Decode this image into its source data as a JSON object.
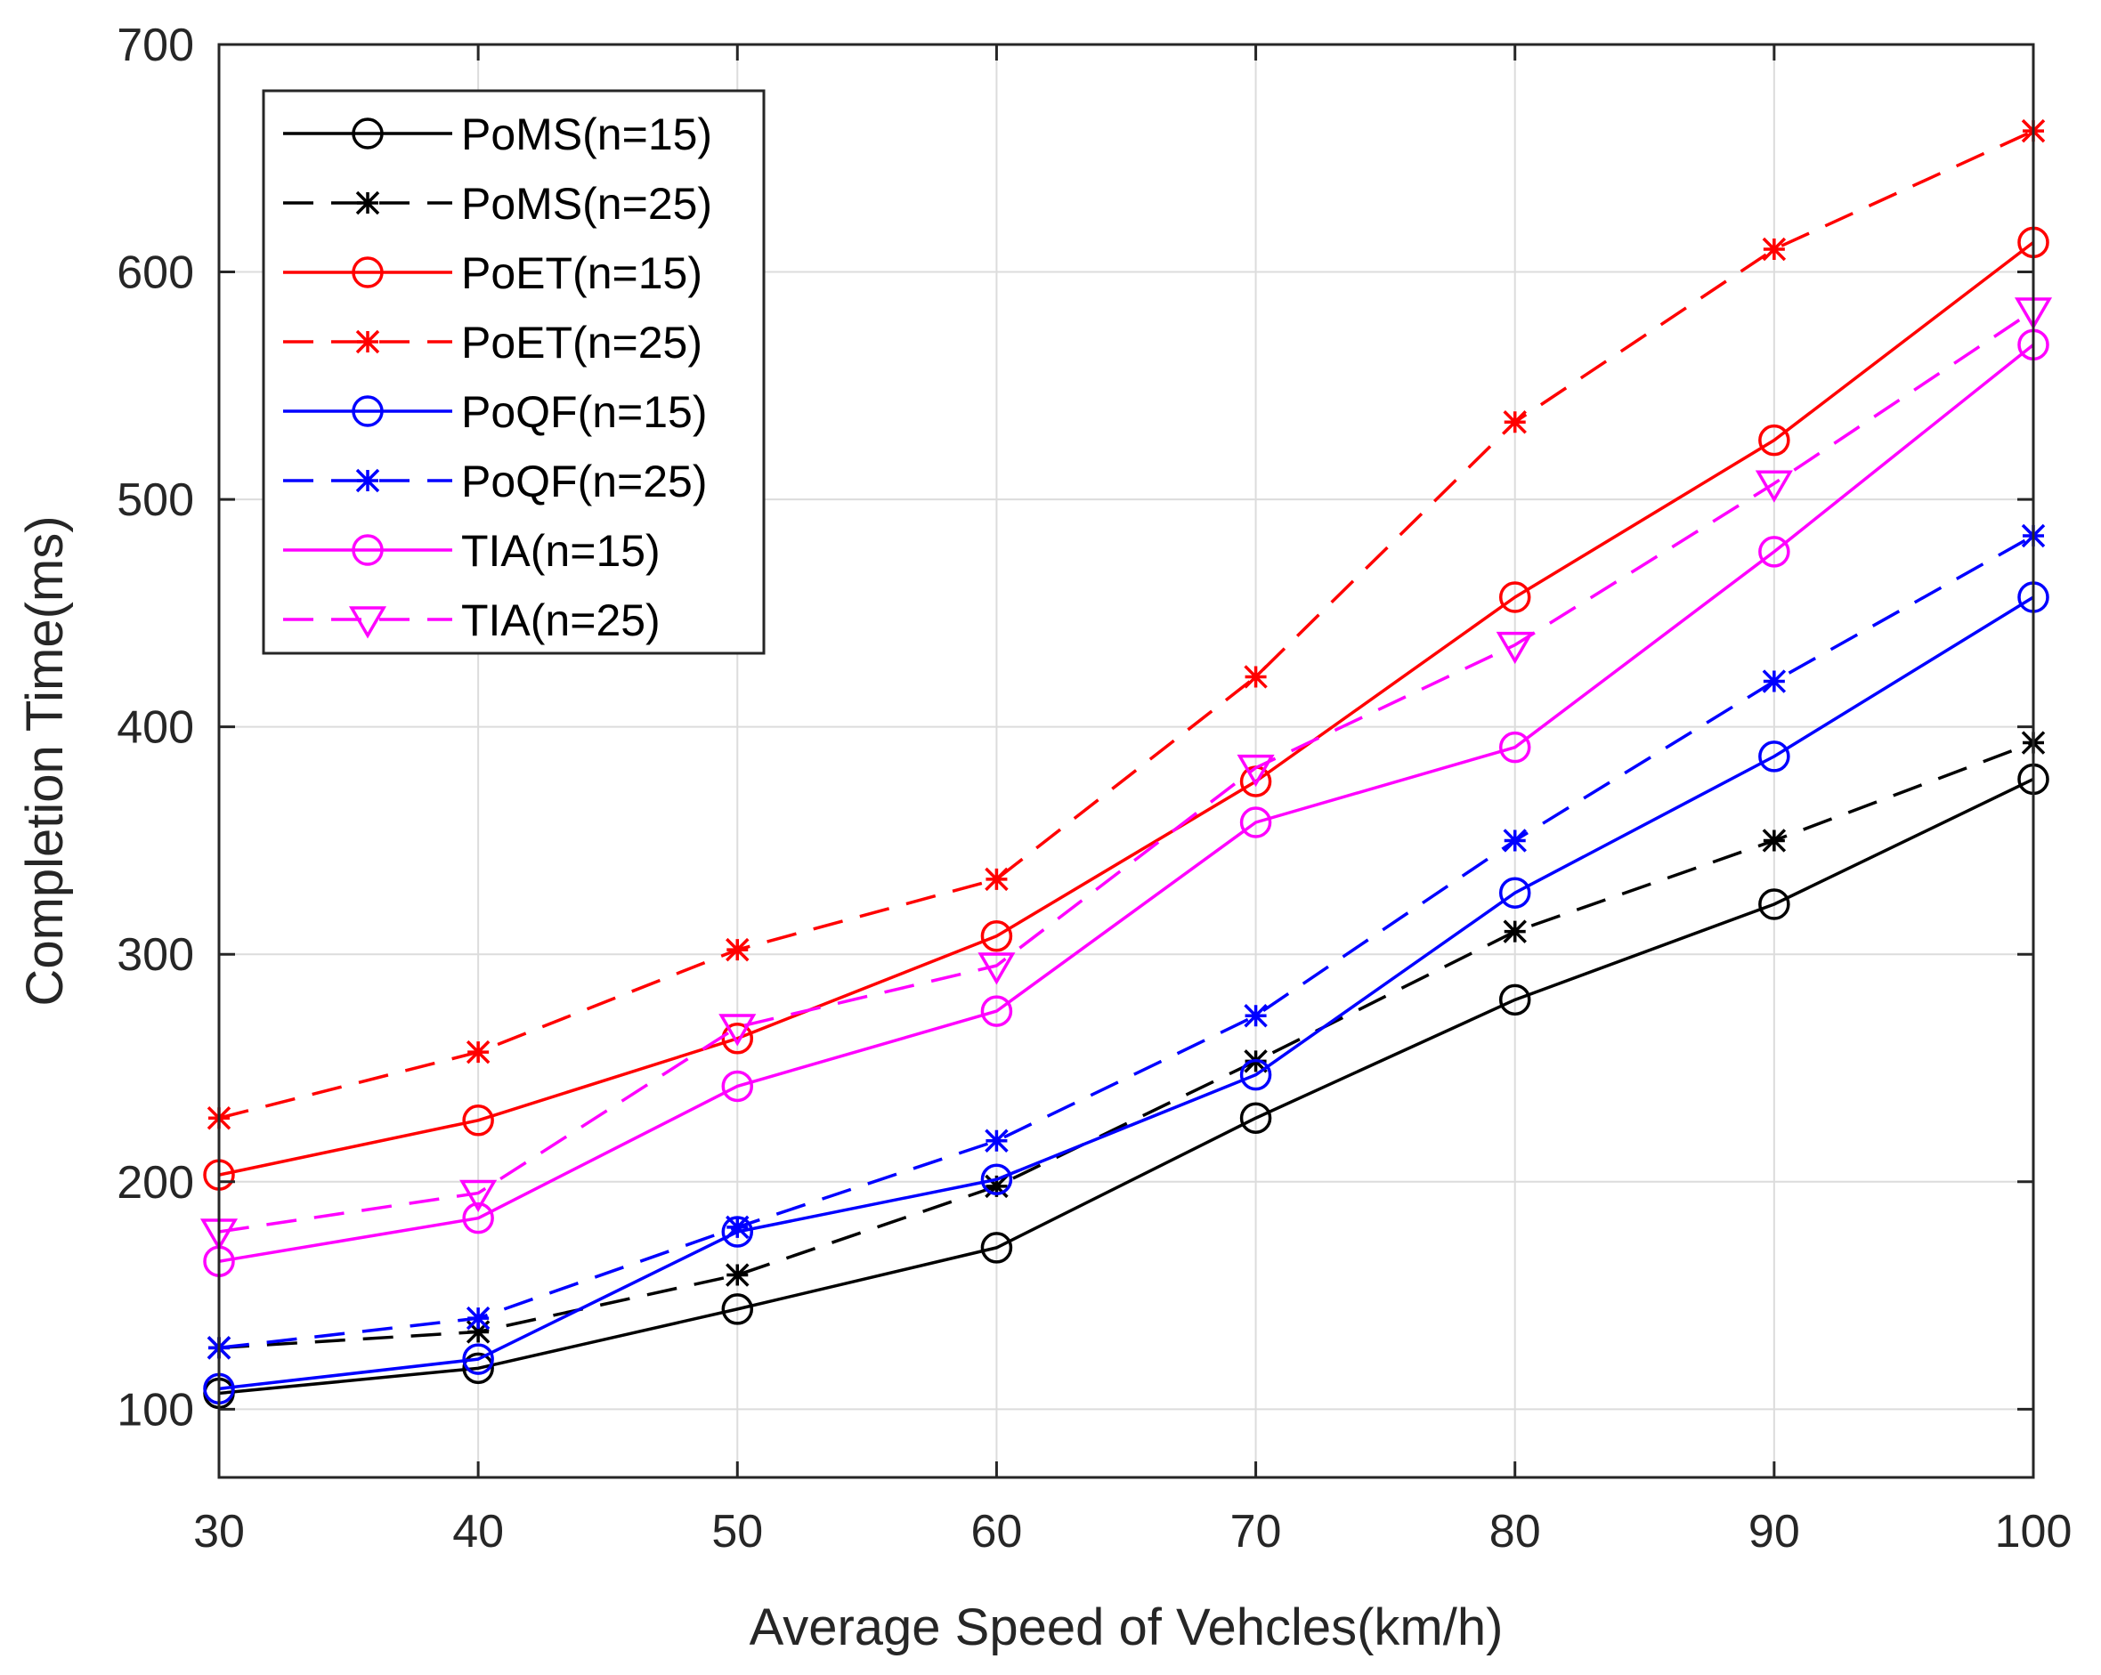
{
  "chart_data": {
    "type": "line",
    "title": "",
    "xlabel": "Average Speed of Vehcles(km/h)",
    "ylabel": "Completion Time(ms)",
    "x": [
      30,
      40,
      50,
      60,
      70,
      80,
      90,
      100
    ],
    "xlim": [
      30,
      100
    ],
    "ylim": [
      70,
      700
    ],
    "xticks": [
      "30",
      "40",
      "50",
      "60",
      "70",
      "80",
      "90",
      "100"
    ],
    "yticks": [
      100,
      200,
      300,
      400,
      500,
      600,
      700
    ],
    "ytick_labels": [
      "100",
      "200",
      "300",
      "400",
      "500",
      "600",
      "700"
    ],
    "grid": true,
    "legend_position": "top-left",
    "series": [
      {
        "name": "PoMS(n=15)",
        "color": "#000000",
        "dashed": false,
        "marker": "circle",
        "values": [
          107,
          118,
          144,
          171,
          228,
          280,
          322,
          377
        ]
      },
      {
        "name": "PoMS(n=25)",
        "color": "#000000",
        "dashed": true,
        "marker": "star",
        "values": [
          127,
          134,
          159,
          198,
          253,
          310,
          350,
          393
        ]
      },
      {
        "name": "PoET(n=15)",
        "color": "#ff0000",
        "dashed": false,
        "marker": "circle",
        "values": [
          203,
          227,
          263,
          308,
          376,
          457,
          526,
          613
        ]
      },
      {
        "name": "PoET(n=25)",
        "color": "#ff0000",
        "dashed": true,
        "marker": "star",
        "values": [
          228,
          257,
          302,
          333,
          422,
          534,
          610,
          662
        ]
      },
      {
        "name": "PoQF(n=15)",
        "color": "#0000ff",
        "dashed": false,
        "marker": "circle",
        "values": [
          109,
          122,
          178,
          201,
          247,
          327,
          387,
          457
        ]
      },
      {
        "name": "PoQF(n=25)",
        "color": "#0000ff",
        "dashed": true,
        "marker": "star",
        "values": [
          127,
          140,
          180,
          218,
          273,
          350,
          420,
          484
        ]
      },
      {
        "name": "TIA(n=15)",
        "color": "#ff00ff",
        "dashed": false,
        "marker": "circle",
        "values": [
          165,
          184,
          242,
          275,
          358,
          391,
          477,
          568
        ]
      },
      {
        "name": "TIA(n=25)",
        "color": "#ff00ff",
        "dashed": true,
        "marker": "triangle-down",
        "values": [
          178,
          195,
          268,
          295,
          382,
          436,
          507,
          583
        ]
      }
    ]
  }
}
